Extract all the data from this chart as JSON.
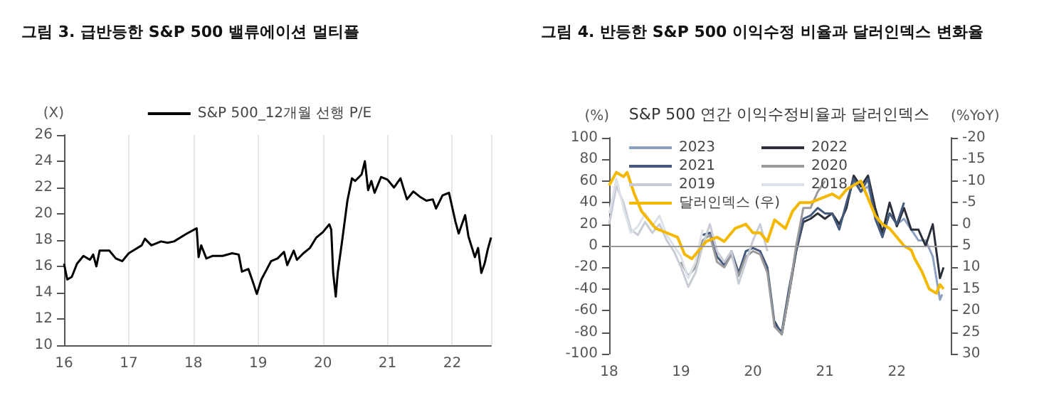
{
  "chart_data": [
    {
      "type": "line",
      "title": "그림 3. 급반등한 S&P 500 밸류에이션 멀티플",
      "ylabel": "(X)",
      "legend": "top",
      "grid": "x",
      "xlim": [
        2016,
        2022.6
      ],
      "xticks": [
        {
          "value": 2016,
          "label": "16"
        },
        {
          "value": 2017,
          "label": "17"
        },
        {
          "value": 2018,
          "label": "18"
        },
        {
          "value": 2019,
          "label": "19"
        },
        {
          "value": 2020,
          "label": "20"
        },
        {
          "value": 2021,
          "label": "21"
        },
        {
          "value": 2022,
          "label": "22"
        }
      ],
      "ylim": [
        10,
        26
      ],
      "yticks": [
        10,
        12,
        14,
        16,
        18,
        20,
        22,
        24,
        26
      ],
      "series": [
        {
          "name": "S&P 500_12개월 선행 P/E",
          "color": "#000000",
          "x": [
            2016.0,
            2016.05,
            2016.12,
            2016.2,
            2016.3,
            2016.4,
            2016.45,
            2016.5,
            2016.55,
            2016.7,
            2016.8,
            2016.9,
            2017.0,
            2017.1,
            2017.2,
            2017.25,
            2017.35,
            2017.5,
            2017.6,
            2017.7,
            2017.8,
            2017.9,
            2018.05,
            2018.08,
            2018.12,
            2018.2,
            2018.3,
            2018.45,
            2018.6,
            2018.7,
            2018.75,
            2018.85,
            2018.92,
            2018.98,
            2019.05,
            2019.2,
            2019.3,
            2019.4,
            2019.45,
            2019.55,
            2019.6,
            2019.7,
            2019.8,
            2019.9,
            2020.0,
            2020.1,
            2020.13,
            2020.16,
            2020.2,
            2020.23,
            2020.3,
            2020.38,
            2020.45,
            2020.5,
            2020.6,
            2020.65,
            2020.7,
            2020.75,
            2020.8,
            2020.9,
            2021.0,
            2021.1,
            2021.2,
            2021.3,
            2021.4,
            2021.5,
            2021.6,
            2021.7,
            2021.75,
            2021.85,
            2021.95,
            2022.05,
            2022.1,
            2022.2,
            2022.25,
            2022.35,
            2022.4,
            2022.45,
            2022.5,
            2022.55,
            2022.6
          ],
          "values": [
            16.2,
            15.0,
            15.2,
            16.2,
            16.8,
            16.5,
            16.9,
            16.0,
            17.2,
            17.2,
            16.6,
            16.4,
            17.0,
            17.3,
            17.6,
            18.1,
            17.6,
            17.9,
            17.8,
            17.9,
            18.2,
            18.5,
            18.9,
            16.7,
            17.6,
            16.6,
            16.8,
            16.8,
            17.0,
            16.9,
            15.6,
            15.8,
            14.8,
            13.9,
            15.0,
            16.4,
            16.6,
            17.1,
            16.1,
            17.2,
            16.5,
            17.0,
            17.4,
            18.2,
            18.6,
            19.2,
            18.8,
            15.5,
            13.7,
            15.5,
            18.0,
            21.0,
            22.7,
            22.5,
            23.0,
            24.0,
            21.8,
            22.5,
            21.6,
            22.8,
            22.6,
            22.0,
            22.7,
            21.1,
            21.7,
            21.3,
            21.0,
            21.1,
            20.4,
            21.4,
            21.6,
            19.4,
            18.5,
            19.9,
            18.3,
            16.7,
            17.4,
            15.5,
            16.2,
            17.3,
            18.2
          ]
        }
      ]
    },
    {
      "type": "line",
      "title": "그림 4. 반등한 S&P 500 이익수정 비율과 달러인덱스 변화율",
      "subtitle": "S&P 500 연간 이익수정비율과 달러인덱스",
      "ylabel": "(%)",
      "y2label": "(%YoY)",
      "legend": "top left",
      "xlim": [
        2018,
        2022.75
      ],
      "xticks": [
        {
          "value": 2018,
          "label": "18"
        },
        {
          "value": 2019,
          "label": "19"
        },
        {
          "value": 2020,
          "label": "20"
        },
        {
          "value": 2021,
          "label": "21"
        },
        {
          "value": 2022,
          "label": "22"
        }
      ],
      "ylim": [
        -100,
        100
      ],
      "yticks": [
        -100,
        -80,
        -60,
        -40,
        -20,
        0,
        20,
        40,
        60,
        80,
        100
      ],
      "y2lim": [
        30,
        -20
      ],
      "y2ticks": [
        -20,
        -15,
        -10,
        -5,
        0,
        5,
        10,
        15,
        20,
        25,
        30
      ],
      "ref_lines": [
        {
          "axis": "y",
          "value": 0,
          "color": "#999999"
        }
      ],
      "series": [
        {
          "name": "2023",
          "color": "#8da0c0",
          "x": [
            2021.3,
            2021.4,
            2021.5,
            2021.6,
            2021.7,
            2021.8,
            2021.9,
            2022.0,
            2022.1,
            2022.2,
            2022.3,
            2022.4,
            2022.5,
            2022.6,
            2022.63
          ],
          "values": [
            40,
            60,
            50,
            55,
            30,
            10,
            30,
            20,
            25,
            15,
            5,
            5,
            -10,
            -50,
            -45
          ]
        },
        {
          "name": "2022",
          "color": "#2b2f3a",
          "x": [
            2020.3,
            2020.4,
            2020.5,
            2020.6,
            2020.7,
            2020.8,
            2020.9,
            2021.0,
            2021.1,
            2021.2,
            2021.3,
            2021.4,
            2021.5,
            2021.6,
            2021.7,
            2021.8,
            2021.9,
            2022.0,
            2022.1,
            2022.2,
            2022.3,
            2022.4,
            2022.5,
            2022.6,
            2022.65
          ],
          "values": [
            -70,
            -82,
            -45,
            -5,
            22,
            25,
            30,
            25,
            30,
            20,
            35,
            65,
            55,
            65,
            35,
            12,
            40,
            18,
            35,
            15,
            15,
            0,
            20,
            -30,
            -20
          ]
        },
        {
          "name": "2021",
          "color": "#44597c",
          "x": [
            2019.3,
            2019.4,
            2019.5,
            2019.6,
            2019.7,
            2019.8,
            2019.9,
            2020.0,
            2020.1,
            2020.2,
            2020.3,
            2020.4,
            2020.5,
            2020.6,
            2020.7,
            2020.8,
            2020.9,
            2021.0,
            2021.1,
            2021.2,
            2021.3,
            2021.4,
            2021.5,
            2021.6,
            2021.7,
            2021.8,
            2021.9,
            2022.0,
            2022.1
          ],
          "values": [
            10,
            12,
            -10,
            -18,
            -5,
            -25,
            -5,
            -2,
            -5,
            -20,
            -72,
            -80,
            -40,
            -5,
            25,
            28,
            35,
            30,
            30,
            15,
            40,
            62,
            50,
            62,
            25,
            8,
            30,
            20,
            40
          ]
        },
        {
          "name": "2020",
          "color": "#9a9a9a",
          "x": [
            2019.0,
            2019.1,
            2019.2,
            2019.3,
            2019.4,
            2019.5,
            2019.6,
            2019.7,
            2019.8,
            2019.9,
            2020.0,
            2020.1,
            2020.2,
            2020.3,
            2020.4,
            2020.5,
            2020.6,
            2020.7,
            2020.8,
            2020.9,
            2021.0
          ],
          "values": [
            -15,
            -28,
            -20,
            5,
            10,
            -15,
            -20,
            -8,
            -28,
            -10,
            -5,
            -8,
            -25,
            -75,
            -82,
            -45,
            0,
            35,
            35,
            50,
            60
          ]
        },
        {
          "name": "2019",
          "color": "#c7ccd6",
          "x": [
            2018.0,
            2018.1,
            2018.2,
            2018.3,
            2018.4,
            2018.5,
            2018.6,
            2018.7,
            2018.8,
            2018.9,
            2019.0,
            2019.1,
            2019.2,
            2019.3,
            2019.4,
            2019.5,
            2019.6,
            2019.7,
            2019.8,
            2019.9,
            2020.0,
            2020.1,
            2020.2
          ],
          "values": [
            20,
            55,
            40,
            15,
            10,
            22,
            12,
            20,
            5,
            -5,
            -20,
            -38,
            -25,
            0,
            20,
            -5,
            -15,
            -5,
            -35,
            -15,
            5,
            20,
            -5
          ]
        },
        {
          "name": "2018",
          "color": "#dde1e8",
          "x": [
            2018.0,
            2018.1,
            2018.2,
            2018.3,
            2018.4,
            2018.5,
            2018.6,
            2018.7,
            2018.8,
            2018.9,
            2019.0,
            2019.1,
            2019.2,
            2019.3
          ],
          "values": [
            30,
            62,
            35,
            12,
            18,
            30,
            18,
            28,
            10,
            0,
            -10,
            -30,
            -15,
            15
          ]
        },
        {
          "name": "달러인덱스 (우)",
          "color": "#f5b800",
          "axis": "y2",
          "x": [
            2018.0,
            2018.1,
            2018.2,
            2018.25,
            2018.35,
            2018.45,
            2018.55,
            2018.65,
            2018.8,
            2018.95,
            2019.05,
            2019.15,
            2019.25,
            2019.35,
            2019.5,
            2019.6,
            2019.75,
            2019.9,
            2020.0,
            2020.1,
            2020.2,
            2020.3,
            2020.45,
            2020.55,
            2020.65,
            2020.8,
            2020.95,
            2021.1,
            2021.2,
            2021.3,
            2021.4,
            2021.5,
            2021.6,
            2021.7,
            2021.8,
            2021.9,
            2022.0,
            2022.1,
            2022.2,
            2022.25,
            2022.35,
            2022.45,
            2022.55,
            2022.6,
            2022.65
          ],
          "values": [
            -9,
            -12,
            -11,
            -12,
            -7,
            -3,
            -1,
            1,
            2,
            3,
            7,
            8,
            6,
            4,
            3,
            4,
            1,
            0,
            2,
            2,
            4,
            -1,
            1,
            -3,
            -5,
            -5,
            -6,
            -7,
            -6,
            -8,
            -9,
            -10,
            -6,
            -2,
            0,
            1,
            3,
            5,
            6,
            8,
            11,
            15,
            16,
            14,
            15
          ]
        }
      ]
    }
  ]
}
